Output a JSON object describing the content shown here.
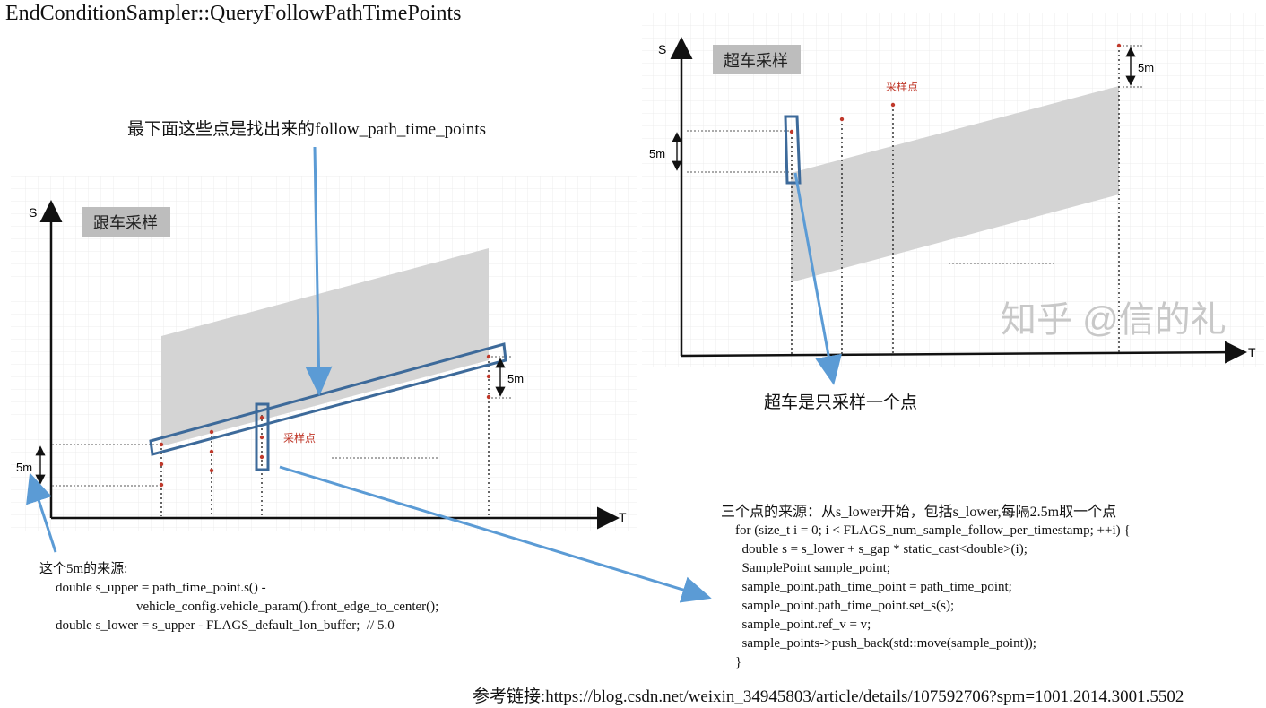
{
  "title": "EndConditionSampler::QueryFollowPathTimePoints",
  "annotations": {
    "bottom_points": "最下面这些点是找出来的follow_path_time_points",
    "overtake_one_point": "超车是只采样一个点",
    "reference": "参考链接:https://blog.csdn.net/weixin_34945803/article/details/107592706?spm=1001.2014.3001.5502"
  },
  "follow_chart": {
    "tag": "跟车采样",
    "y_axis": "S",
    "x_axis": "T",
    "sample_label": "采样点",
    "dim_left": "5m",
    "dim_right": "5m"
  },
  "overtake_chart": {
    "tag": "超车采样",
    "y_axis": "S",
    "x_axis": "T",
    "sample_label": "采样点",
    "dim_left": "5m",
    "dim_right": "5m",
    "watermark": "知乎 @信的礼"
  },
  "five_m_source": {
    "heading": "这个5m的来源:",
    "lines": [
      "double s_upper = path_time_point.s() -",
      "                        vehicle_config.vehicle_param().front_edge_to_center();",
      "double s_lower = s_upper - FLAGS_default_lon_buffer;  // 5.0"
    ]
  },
  "three_points_source": {
    "heading": "三个点的来源：从s_lower开始，包括s_lower,每隔2.5m取一个点",
    "lines": [
      "for (size_t i = 0; i < FLAGS_num_sample_follow_per_timestamp; ++i) {",
      "  double s = s_lower + s_gap * static_cast<double>(i);",
      "  SamplePoint sample_point;",
      "  sample_point.path_time_point = path_time_point;",
      "  sample_point.path_time_point.set_s(s);",
      "  sample_point.ref_v = v;",
      "  sample_points->push_back(std::move(sample_point));",
      "}"
    ]
  },
  "colors": {
    "band": "#d4d4d4",
    "axis": "#111111",
    "highlight": "#3d6a9a",
    "arrow": "#5b9bd5",
    "point": "#c0392b",
    "grid": "#ececec"
  }
}
